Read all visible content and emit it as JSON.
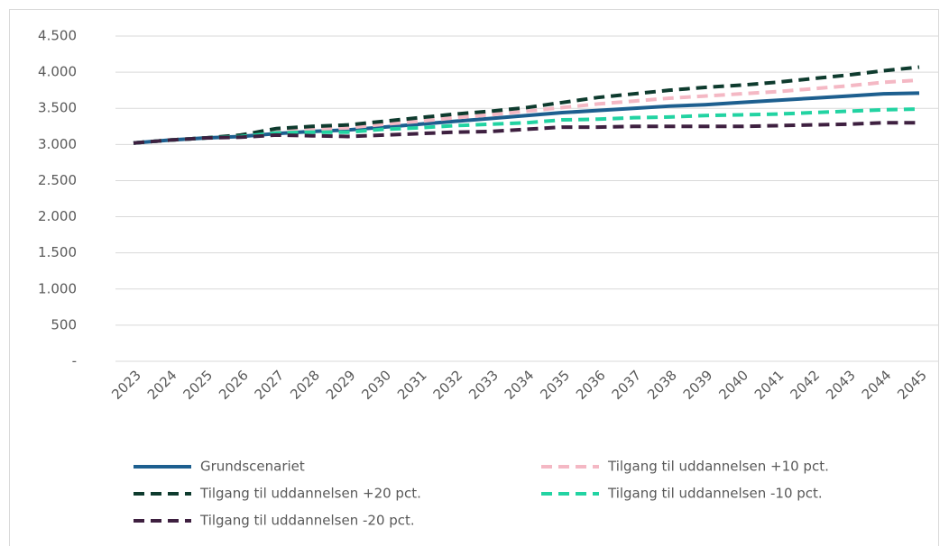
{
  "chart_data": {
    "type": "line",
    "x": [
      2023,
      2024,
      2025,
      2026,
      2027,
      2028,
      2029,
      2030,
      2031,
      2032,
      2033,
      2034,
      2035,
      2036,
      2037,
      2038,
      2039,
      2040,
      2041,
      2042,
      2043,
      2044,
      2045
    ],
    "series": [
      {
        "name": "Grundscenariet",
        "color": "#1d5f8f",
        "dashed": false,
        "values": [
          3020,
          3060,
          3090,
          3110,
          3150,
          3180,
          3200,
          3240,
          3280,
          3320,
          3360,
          3400,
          3440,
          3470,
          3500,
          3530,
          3550,
          3580,
          3610,
          3640,
          3670,
          3700,
          3710
        ]
      },
      {
        "name": "Tilgang til uddannelsen +10 pct.",
        "color": "#f4b8c4",
        "dashed": true,
        "values": [
          3020,
          3060,
          3090,
          3120,
          3190,
          3210,
          3230,
          3280,
          3320,
          3370,
          3410,
          3460,
          3510,
          3560,
          3600,
          3640,
          3670,
          3700,
          3730,
          3770,
          3810,
          3860,
          3890
        ]
      },
      {
        "name": "Tilgang til uddannelsen +20 pct.",
        "color": "#0e3b2e",
        "dashed": true,
        "values": [
          3020,
          3060,
          3090,
          3130,
          3220,
          3250,
          3270,
          3320,
          3370,
          3420,
          3460,
          3510,
          3580,
          3650,
          3700,
          3750,
          3790,
          3820,
          3860,
          3910,
          3960,
          4020,
          4070
        ]
      },
      {
        "name": "Tilgang til uddannelsen -10 pct.",
        "color": "#22d3a2",
        "dashed": true,
        "values": [
          3020,
          3060,
          3090,
          3110,
          3160,
          3170,
          3170,
          3210,
          3230,
          3260,
          3280,
          3300,
          3340,
          3350,
          3370,
          3380,
          3400,
          3410,
          3420,
          3440,
          3460,
          3480,
          3490
        ]
      },
      {
        "name": "Tilgang til uddannelsen -20 pct.",
        "color": "#3e2040",
        "dashed": true,
        "values": [
          3020,
          3060,
          3090,
          3100,
          3130,
          3120,
          3110,
          3130,
          3150,
          3170,
          3180,
          3210,
          3240,
          3240,
          3250,
          3250,
          3250,
          3250,
          3260,
          3270,
          3280,
          3300,
          3300
        ]
      }
    ],
    "ylim": [
      0,
      4500
    ],
    "yticks": [
      {
        "value": 0,
        "label": "-"
      },
      500,
      {
        "value": 1000,
        "label": "1.000"
      },
      {
        "value": 1500,
        "label": "1.500"
      },
      {
        "value": 2000,
        "label": "2.000"
      },
      {
        "value": 2500,
        "label": "2.500"
      },
      {
        "value": 3000,
        "label": "3.000"
      },
      {
        "value": 3500,
        "label": "3.500"
      },
      {
        "value": 4000,
        "label": "4.000"
      },
      {
        "value": 4500,
        "label": "4.500"
      }
    ],
    "grid": true
  }
}
